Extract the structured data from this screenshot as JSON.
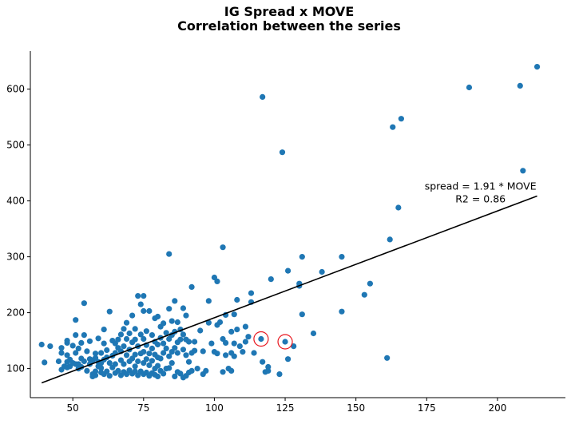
{
  "chart_data": {
    "type": "scatter",
    "title": "IG Spread x MOVE",
    "subtitle": "Correlation between the series",
    "xlabel": "",
    "ylabel": "",
    "xlim": [
      35,
      224
    ],
    "ylim": [
      48,
      668
    ],
    "xticks": [
      50,
      75,
      100,
      125,
      150,
      175,
      200
    ],
    "yticks": [
      100,
      200,
      300,
      400,
      500,
      600
    ],
    "grid": false,
    "legend": "none",
    "point_color": "#1f77b4",
    "fit_color": "#000000",
    "highlight_color": "#e8141c",
    "fit_line": {
      "slope": 1.91,
      "x": [
        39,
        214
      ]
    },
    "annotation": {
      "line1": "spread = 1.91 * MOVE",
      "line2": "R2 = 0.86",
      "x": 194,
      "y": 426
    },
    "highlighted_points": [
      {
        "x": 116.5,
        "y": 153
      },
      {
        "x": 125,
        "y": 148
      }
    ],
    "points": [
      [
        39,
        143
      ],
      [
        40,
        111
      ],
      [
        42,
        140
      ],
      [
        45,
        113
      ],
      [
        46,
        98
      ],
      [
        46,
        128
      ],
      [
        46,
        137
      ],
      [
        47,
        104
      ],
      [
        48,
        102
      ],
      [
        48,
        112
      ],
      [
        48,
        124
      ],
      [
        48,
        146
      ],
      [
        48,
        150
      ],
      [
        49,
        104
      ],
      [
        49,
        116
      ],
      [
        50,
        110
      ],
      [
        50,
        141
      ],
      [
        51,
        108
      ],
      [
        51,
        128
      ],
      [
        51,
        160
      ],
      [
        51,
        187
      ],
      [
        52,
        100
      ],
      [
        52,
        108
      ],
      [
        52,
        136
      ],
      [
        53,
        103
      ],
      [
        53,
        118
      ],
      [
        53,
        146
      ],
      [
        54,
        113
      ],
      [
        54,
        160
      ],
      [
        54,
        217
      ],
      [
        55,
        96
      ],
      [
        55,
        131
      ],
      [
        56,
        108
      ],
      [
        56,
        117
      ],
      [
        56,
        149
      ],
      [
        57,
        90
      ],
      [
        57,
        115
      ],
      [
        57,
        86
      ],
      [
        58,
        88
      ],
      [
        58,
        95
      ],
      [
        58,
        119
      ],
      [
        58,
        127
      ],
      [
        59,
        104
      ],
      [
        59,
        112
      ],
      [
        59,
        154
      ],
      [
        60,
        93
      ],
      [
        60,
        101
      ],
      [
        60,
        110
      ],
      [
        60,
        128
      ],
      [
        61,
        90
      ],
      [
        61,
        116
      ],
      [
        61,
        145
      ],
      [
        61,
        170
      ],
      [
        62,
        95
      ],
      [
        62,
        120
      ],
      [
        62,
        133
      ],
      [
        63,
        87
      ],
      [
        63,
        110
      ],
      [
        63,
        202
      ],
      [
        64,
        102
      ],
      [
        64,
        123
      ],
      [
        64,
        150
      ],
      [
        65,
        92
      ],
      [
        65,
        108
      ],
      [
        65,
        128
      ],
      [
        65,
        145
      ],
      [
        66,
        96
      ],
      [
        66,
        137
      ],
      [
        66,
        152
      ],
      [
        67,
        88
      ],
      [
        67,
        115
      ],
      [
        67,
        131
      ],
      [
        67,
        161
      ],
      [
        68,
        94
      ],
      [
        68,
        108
      ],
      [
        68,
        140
      ],
      [
        68,
        171
      ],
      [
        69,
        90
      ],
      [
        69,
        124
      ],
      [
        69,
        153
      ],
      [
        69,
        182
      ],
      [
        70,
        97
      ],
      [
        70,
        113
      ],
      [
        70,
        134
      ],
      [
        70,
        163
      ],
      [
        71,
        91
      ],
      [
        71,
        118
      ],
      [
        71,
        147
      ],
      [
        71,
        195
      ],
      [
        72,
        95
      ],
      [
        72,
        104
      ],
      [
        72,
        125
      ],
      [
        72,
        152
      ],
      [
        72,
        171
      ],
      [
        73,
        88
      ],
      [
        73,
        113
      ],
      [
        73,
        140
      ],
      [
        73,
        230
      ],
      [
        74,
        95
      ],
      [
        74,
        127
      ],
      [
        74,
        161
      ],
      [
        74,
        215
      ],
      [
        75,
        90
      ],
      [
        75,
        110
      ],
      [
        75,
        130
      ],
      [
        75,
        153
      ],
      [
        75,
        203
      ],
      [
        75,
        230
      ],
      [
        76,
        93
      ],
      [
        76,
        117
      ],
      [
        76,
        142
      ],
      [
        76,
        167
      ],
      [
        77,
        87
      ],
      [
        77,
        106
      ],
      [
        77,
        127
      ],
      [
        77,
        203
      ],
      [
        78,
        92
      ],
      [
        78,
        114
      ],
      [
        78,
        136
      ],
      [
        78,
        160
      ],
      [
        79,
        89
      ],
      [
        79,
        100
      ],
      [
        79,
        125
      ],
      [
        79,
        148
      ],
      [
        79,
        190
      ],
      [
        80,
        86
      ],
      [
        80,
        105
      ],
      [
        80,
        120
      ],
      [
        80,
        143
      ],
      [
        80,
        193
      ],
      [
        81,
        96
      ],
      [
        81,
        118
      ],
      [
        81,
        155
      ],
      [
        81,
        175
      ],
      [
        82,
        91
      ],
      [
        82,
        128
      ],
      [
        82,
        145
      ],
      [
        82,
        181
      ],
      [
        83,
        100
      ],
      [
        83,
        136
      ],
      [
        83,
        164
      ],
      [
        84,
        101
      ],
      [
        84,
        122
      ],
      [
        84,
        153
      ],
      [
        84,
        207
      ],
      [
        84,
        305
      ],
      [
        85,
        110
      ],
      [
        85,
        130
      ],
      [
        85,
        160
      ],
      [
        85,
        185
      ],
      [
        86,
        86
      ],
      [
        86,
        137
      ],
      [
        86,
        166
      ],
      [
        86,
        221
      ],
      [
        87,
        94
      ],
      [
        87,
        128
      ],
      [
        87,
        147
      ],
      [
        87,
        183
      ],
      [
        88,
        91
      ],
      [
        88,
        152
      ],
      [
        88,
        170
      ],
      [
        89,
        84
      ],
      [
        89,
        134
      ],
      [
        89,
        161
      ],
      [
        89,
        208
      ],
      [
        90,
        87
      ],
      [
        90,
        124
      ],
      [
        90,
        152
      ],
      [
        90,
        195
      ],
      [
        91,
        93
      ],
      [
        91,
        112
      ],
      [
        91,
        148
      ],
      [
        92,
        96
      ],
      [
        92,
        128
      ],
      [
        92,
        246
      ],
      [
        93,
        132
      ],
      [
        93,
        148
      ],
      [
        94,
        100
      ],
      [
        95,
        168
      ],
      [
        96,
        90
      ],
      [
        96,
        131
      ],
      [
        97,
        96
      ],
      [
        98,
        182
      ],
      [
        98,
        221
      ],
      [
        99,
        145
      ],
      [
        100,
        130
      ],
      [
        100,
        263
      ],
      [
        101,
        127
      ],
      [
        101,
        178
      ],
      [
        101,
        256
      ],
      [
        102,
        183
      ],
      [
        103,
        94
      ],
      [
        103,
        153
      ],
      [
        103,
        317
      ],
      [
        104,
        124
      ],
      [
        104,
        196
      ],
      [
        104,
        146
      ],
      [
        105,
        100
      ],
      [
        106,
        96
      ],
      [
        106,
        128
      ],
      [
        106,
        166
      ],
      [
        107,
        145
      ],
      [
        107,
        122
      ],
      [
        107,
        197
      ],
      [
        108,
        170
      ],
      [
        108,
        223
      ],
      [
        109,
        140
      ],
      [
        110,
        130
      ],
      [
        111,
        175
      ],
      [
        111,
        148
      ],
      [
        112,
        157
      ],
      [
        113,
        219
      ],
      [
        113,
        235
      ],
      [
        114,
        128
      ],
      [
        117,
        586
      ],
      [
        117,
        112
      ],
      [
        118,
        94
      ],
      [
        119,
        103
      ],
      [
        119,
        96
      ],
      [
        120,
        260
      ],
      [
        123,
        90
      ],
      [
        124,
        487
      ],
      [
        126,
        117
      ],
      [
        126,
        275
      ],
      [
        128,
        140
      ],
      [
        130,
        252
      ],
      [
        130,
        248
      ],
      [
        131,
        197
      ],
      [
        131,
        300
      ],
      [
        135,
        163
      ],
      [
        138,
        273
      ],
      [
        145,
        300
      ],
      [
        145,
        202
      ],
      [
        153,
        232
      ],
      [
        155,
        252
      ],
      [
        161,
        119
      ],
      [
        162,
        331
      ],
      [
        163,
        532
      ],
      [
        165,
        388
      ],
      [
        166,
        547
      ],
      [
        190,
        603
      ],
      [
        208,
        606
      ],
      [
        209,
        454
      ],
      [
        214,
        640
      ]
    ]
  }
}
